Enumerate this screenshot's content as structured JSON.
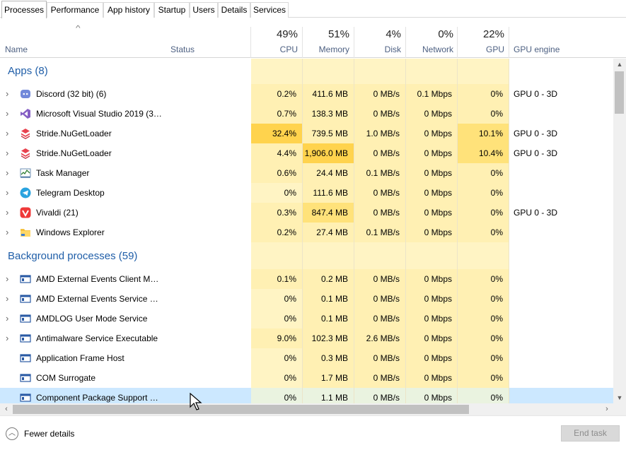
{
  "tabs": [
    "Processes",
    "Performance",
    "App history",
    "Startup",
    "Users",
    "Details",
    "Services"
  ],
  "header": {
    "name": "Name",
    "status": "Status",
    "cpu_pct": "49%",
    "cpu": "CPU",
    "mem_pct": "51%",
    "mem": "Memory",
    "disk_pct": "4%",
    "disk": "Disk",
    "net_pct": "0%",
    "net": "Network",
    "gpu_pct": "22%",
    "gpu": "GPU",
    "gpu_engine": "GPU engine"
  },
  "groups": {
    "apps": "Apps (8)",
    "background": "Background processes (59)"
  },
  "apps": [
    {
      "name": "Discord (32 bit) (6)",
      "icon": "discord-icon",
      "cpu": "0.2%",
      "mem": "411.6 MB",
      "disk": "0 MB/s",
      "net": "0.1 Mbps",
      "gpu": "0%",
      "gpu_engine": "GPU 0 - 3D",
      "cpuHeat": 1,
      "memHeat": 1,
      "diskHeat": 1,
      "netHeat": 1,
      "gpuHeat": 1
    },
    {
      "name": "Microsoft Visual Studio 2019 (32...",
      "icon": "visual-studio-icon",
      "cpu": "0.7%",
      "mem": "138.3 MB",
      "disk": "0 MB/s",
      "net": "0 Mbps",
      "gpu": "0%",
      "gpu_engine": "",
      "cpuHeat": 1,
      "memHeat": 1,
      "diskHeat": 1,
      "netHeat": 1,
      "gpuHeat": 1
    },
    {
      "name": "Stride.NuGetLoader",
      "icon": "stride-icon",
      "cpu": "32.4%",
      "mem": "739.5 MB",
      "disk": "1.0 MB/s",
      "net": "0 Mbps",
      "gpu": "10.1%",
      "gpu_engine": "GPU 0 - 3D",
      "cpuHeat": 3,
      "memHeat": 1,
      "diskHeat": 1,
      "netHeat": 1,
      "gpuHeat": 2
    },
    {
      "name": "Stride.NuGetLoader",
      "icon": "stride-icon",
      "cpu": "4.4%",
      "mem": "1,906.0 MB",
      "disk": "0 MB/s",
      "net": "0 Mbps",
      "gpu": "10.4%",
      "gpu_engine": "GPU 0 - 3D",
      "cpuHeat": 1,
      "memHeat": 3,
      "diskHeat": 1,
      "netHeat": 1,
      "gpuHeat": 2
    },
    {
      "name": "Task Manager",
      "icon": "task-manager-icon",
      "cpu": "0.6%",
      "mem": "24.4 MB",
      "disk": "0.1 MB/s",
      "net": "0 Mbps",
      "gpu": "0%",
      "gpu_engine": "",
      "cpuHeat": 1,
      "memHeat": 1,
      "diskHeat": 1,
      "netHeat": 1,
      "gpuHeat": 1
    },
    {
      "name": "Telegram Desktop",
      "icon": "telegram-icon",
      "cpu": "0%",
      "mem": "111.6 MB",
      "disk": "0 MB/s",
      "net": "0 Mbps",
      "gpu": "0%",
      "gpu_engine": "",
      "cpuHeat": 0,
      "memHeat": 1,
      "diskHeat": 1,
      "netHeat": 1,
      "gpuHeat": 1
    },
    {
      "name": "Vivaldi (21)",
      "icon": "vivaldi-icon",
      "cpu": "0.3%",
      "mem": "847.4 MB",
      "disk": "0 MB/s",
      "net": "0 Mbps",
      "gpu": "0%",
      "gpu_engine": "GPU 0 - 3D",
      "cpuHeat": 1,
      "memHeat": 2,
      "diskHeat": 1,
      "netHeat": 1,
      "gpuHeat": 1
    },
    {
      "name": "Windows Explorer",
      "icon": "folder-icon",
      "cpu": "0.2%",
      "mem": "27.4 MB",
      "disk": "0.1 MB/s",
      "net": "0 Mbps",
      "gpu": "0%",
      "gpu_engine": "",
      "cpuHeat": 1,
      "memHeat": 1,
      "diskHeat": 1,
      "netHeat": 1,
      "gpuHeat": 1
    }
  ],
  "background": [
    {
      "name": "AMD External Events Client Mo...",
      "expand": true,
      "cpu": "0.1%",
      "mem": "0.2 MB",
      "disk": "0 MB/s",
      "net": "0 Mbps",
      "gpu": "0%",
      "cpuHeat": 1
    },
    {
      "name": "AMD External Events Service M...",
      "expand": true,
      "cpu": "0%",
      "mem": "0.1 MB",
      "disk": "0 MB/s",
      "net": "0 Mbps",
      "gpu": "0%",
      "cpuHeat": 0
    },
    {
      "name": "AMDLOG User Mode Service",
      "expand": true,
      "cpu": "0%",
      "mem": "0.1 MB",
      "disk": "0 MB/s",
      "net": "0 Mbps",
      "gpu": "0%",
      "cpuHeat": 0
    },
    {
      "name": "Antimalware Service Executable",
      "expand": true,
      "cpu": "9.0%",
      "mem": "102.3 MB",
      "disk": "2.6 MB/s",
      "net": "0 Mbps",
      "gpu": "0%",
      "cpuHeat": 1
    },
    {
      "name": "Application Frame Host",
      "expand": false,
      "cpu": "0%",
      "mem": "0.3 MB",
      "disk": "0 MB/s",
      "net": "0 Mbps",
      "gpu": "0%",
      "cpuHeat": 0
    },
    {
      "name": "COM Surrogate",
      "expand": false,
      "cpu": "0%",
      "mem": "1.7 MB",
      "disk": "0 MB/s",
      "net": "0 Mbps",
      "gpu": "0%",
      "cpuHeat": 0
    },
    {
      "name": "Component Package Support S...",
      "expand": false,
      "cpu": "0%",
      "mem": "1.1 MB",
      "disk": "0 MB/s",
      "net": "0 Mbps",
      "gpu": "0%",
      "cpuHeat": 0,
      "selected": true
    }
  ],
  "footer": {
    "fewer_details": "Fewer details",
    "end_task": "End task"
  }
}
